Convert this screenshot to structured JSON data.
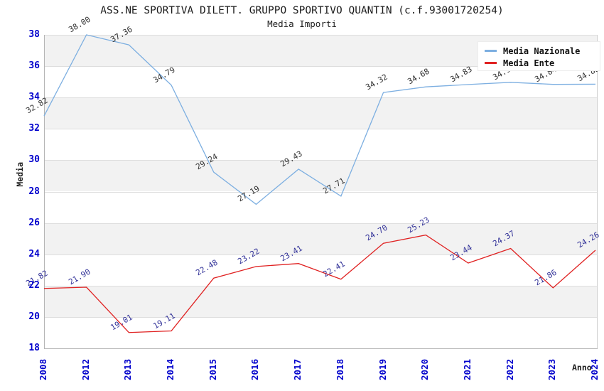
{
  "header": {
    "title": "ASS.NE SPORTIVA DILETT. GRUPPO SPORTIVO QUANTIN (c.f.93001720254)",
    "subtitle": "Media Importi"
  },
  "colors": {
    "tick_label": "#0000cc",
    "national_line": "#7dafe1",
    "ente_line": "#e02222",
    "national_point_label": "#333333",
    "ente_point_label": "#333399",
    "band_gray": "#f2f2f2",
    "band_white": "#ffffff",
    "gridline": "#dedede"
  },
  "chart_data": {
    "type": "line",
    "title": "ASS.NE SPORTIVA DILETT. GRUPPO SPORTIVO QUANTIN (c.f.93001720254)",
    "subtitle": "Media Importi",
    "xlabel": "Anno",
    "ylabel": "Media",
    "ylim": [
      18,
      38
    ],
    "ytick_step": 2,
    "grid": "horizontal-bands-alternating",
    "legend_position": "top-right-inside",
    "categories": [
      "2008",
      "2012",
      "2013",
      "2014",
      "2015",
      "2016",
      "2017",
      "2018",
      "2019",
      "2020",
      "2021",
      "2022",
      "2023",
      "2024"
    ],
    "series": [
      {
        "name": "Media Nazionale",
        "color": "#7dafe1",
        "label_color": "#333333",
        "values": [
          32.82,
          38.0,
          37.36,
          34.79,
          29.24,
          27.19,
          29.43,
          27.71,
          34.32,
          34.68,
          34.83,
          34.97,
          34.84,
          34.85
        ]
      },
      {
        "name": "Media Ente",
        "color": "#e02222",
        "label_color": "#333399",
        "values": [
          21.82,
          21.9,
          19.01,
          19.11,
          22.48,
          23.22,
          23.41,
          22.41,
          24.7,
          25.23,
          23.44,
          24.37,
          21.86,
          24.26
        ]
      }
    ]
  }
}
